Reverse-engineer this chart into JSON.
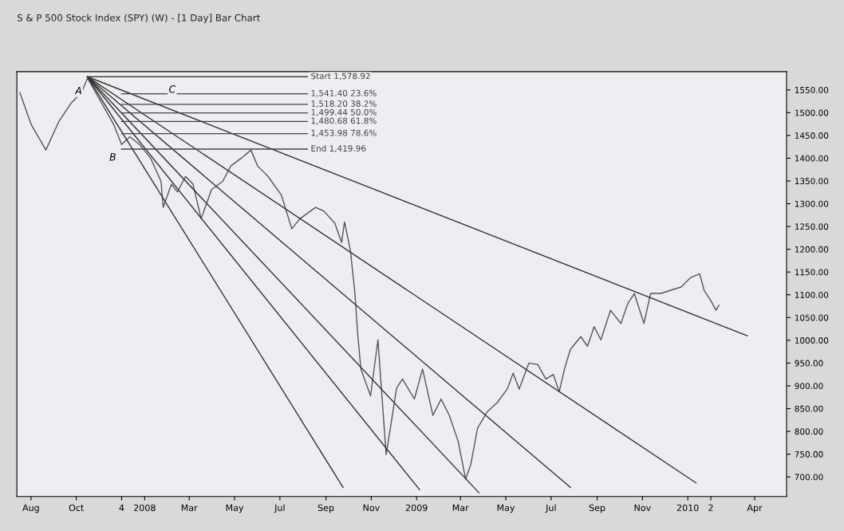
{
  "chart_data": {
    "type": "line",
    "title": "S & P 500 Stock Index (SPY) (W) - [1 Day] Bar Chart",
    "xlim": [
      "2007-07-13",
      "2010-05-14"
    ],
    "xticks": [
      {
        "value": "2007-08-01",
        "label": "Aug"
      },
      {
        "value": "2007-10-01",
        "label": "Oct"
      },
      {
        "value": "2007-12-01",
        "label": "4"
      },
      {
        "value": "2008-01-01",
        "label": "2008"
      },
      {
        "value": "2008-03-01",
        "label": "Mar"
      },
      {
        "value": "2008-05-01",
        "label": "May"
      },
      {
        "value": "2008-07-01",
        "label": "Jul"
      },
      {
        "value": "2008-09-01",
        "label": "Sep"
      },
      {
        "value": "2008-11-01",
        "label": "Nov"
      },
      {
        "value": "2009-01-01",
        "label": "2009"
      },
      {
        "value": "2009-03-01",
        "label": "Mar"
      },
      {
        "value": "2009-05-01",
        "label": "May"
      },
      {
        "value": "2009-07-01",
        "label": "Jul"
      },
      {
        "value": "2009-09-01",
        "label": "Sep"
      },
      {
        "value": "2009-11-01",
        "label": "Nov"
      },
      {
        "value": "2010-01-01",
        "label": "2010"
      },
      {
        "value": "2010-02-01",
        "label": "2"
      },
      {
        "value": "2010-04-01",
        "label": "Apr"
      }
    ],
    "ylim": [
      657,
      1590
    ],
    "yticks": [
      {
        "value": 700,
        "label": "700.00"
      },
      {
        "value": 750,
        "label": "750.00"
      },
      {
        "value": 800,
        "label": "800.00"
      },
      {
        "value": 850,
        "label": "850.00"
      },
      {
        "value": 900,
        "label": "900.00"
      },
      {
        "value": 950,
        "label": "950.00"
      },
      {
        "value": 1000,
        "label": "1000.00"
      },
      {
        "value": 1050,
        "label": "1050.00"
      },
      {
        "value": 1100,
        "label": "1100.00"
      },
      {
        "value": 1150,
        "label": "1150.00"
      },
      {
        "value": 1200,
        "label": "1200.00"
      },
      {
        "value": 1250,
        "label": "1250.00"
      },
      {
        "value": 1300,
        "label": "1300.00"
      },
      {
        "value": 1350,
        "label": "1350.00"
      },
      {
        "value": 1400,
        "label": "1400.00"
      },
      {
        "value": 1450,
        "label": "1450.00"
      },
      {
        "value": 1500,
        "label": "1500.00"
      },
      {
        "value": 1550,
        "label": "1550.00"
      }
    ],
    "grid": false,
    "legend": false,
    "series": [
      {
        "color": "#555555",
        "x": [
          "2007-07-17",
          "2007-08-01",
          "2007-08-21",
          "2007-09-08",
          "2007-09-24",
          "2007-10-08",
          "2007-10-16",
          "2007-11-02",
          "2007-11-20",
          "2007-12-01",
          "2007-12-12",
          "2007-12-25",
          "2008-01-09",
          "2008-01-23",
          "2008-01-26",
          "2008-02-06",
          "2008-02-14",
          "2008-02-25",
          "2008-03-06",
          "2008-03-17",
          "2008-03-31",
          "2008-04-15",
          "2008-04-26",
          "2008-05-10",
          "2008-05-23",
          "2008-06-01",
          "2008-06-15",
          "2008-07-03",
          "2008-07-17",
          "2008-07-28",
          "2008-08-18",
          "2008-08-29",
          "2008-09-13",
          "2008-09-22",
          "2008-09-26",
          "2008-10-04",
          "2008-10-10",
          "2008-10-14",
          "2008-10-18",
          "2008-10-31",
          "2008-11-10",
          "2008-11-14",
          "2008-11-21",
          "2008-11-28",
          "2008-12-05",
          "2008-12-13",
          "2008-12-29",
          "2009-01-09",
          "2009-01-23",
          "2009-02-03",
          "2009-02-14",
          "2009-02-26",
          "2009-03-04",
          "2009-03-08",
          "2009-03-15",
          "2009-03-24",
          "2009-04-06",
          "2009-04-20",
          "2009-05-03",
          "2009-05-11",
          "2009-05-19",
          "2009-06-01",
          "2009-06-13",
          "2009-06-24",
          "2009-07-04",
          "2009-07-12",
          "2009-07-19",
          "2009-07-27",
          "2009-08-10",
          "2009-08-19",
          "2009-08-28",
          "2009-09-06",
          "2009-09-19",
          "2009-10-03",
          "2009-10-12",
          "2009-10-21",
          "2009-11-03",
          "2009-11-12",
          "2009-11-26",
          "2009-12-09",
          "2009-12-23",
          "2010-01-05",
          "2010-01-17",
          "2010-01-23",
          "2010-02-01",
          "2010-02-08",
          "2010-02-12"
        ],
        "values": [
          1544,
          1475,
          1418,
          1482,
          1521,
          1544,
          1576,
          1527,
          1475,
          1430,
          1447,
          1430,
          1400,
          1349,
          1292,
          1343,
          1326,
          1360,
          1343,
          1267,
          1331,
          1349,
          1383,
          1400,
          1418,
          1383,
          1360,
          1319,
          1245,
          1267,
          1292,
          1284,
          1257,
          1215,
          1260,
          1196,
          1103,
          1008,
          937,
          878,
          1001,
          908,
          749,
          821,
          895,
          915,
          871,
          937,
          835,
          871,
          835,
          778,
          728,
          695,
          728,
          807,
          843,
          864,
          893,
          928,
          893,
          950,
          947,
          915,
          925,
          887,
          937,
          980,
          1008,
          987,
          1030,
          1001,
          1066,
          1037,
          1080,
          1103,
          1037,
          1103,
          1103,
          1110,
          1117,
          1138,
          1146,
          1110,
          1087,
          1066,
          1077
        ]
      },
      {
        "color": "#333333",
        "x": [
          "2007-10-16",
          "2010-03-22"
        ],
        "values": [
          1578.92,
          1010
        ]
      },
      {
        "color": "#333333",
        "x": [
          "2007-10-16",
          "2010-01-12"
        ],
        "values": [
          1578.92,
          687
        ]
      },
      {
        "color": "#333333",
        "x": [
          "2007-10-16",
          "2009-07-27"
        ],
        "values": [
          1578.92,
          677
        ]
      },
      {
        "color": "#333333",
        "x": [
          "2007-10-16",
          "2009-03-26"
        ],
        "values": [
          1578.92,
          665
        ]
      },
      {
        "color": "#333333",
        "x": [
          "2007-10-16",
          "2009-01-05"
        ],
        "values": [
          1578.92,
          672
        ]
      },
      {
        "color": "#333333",
        "x": [
          "2007-10-16",
          "2008-09-24"
        ],
        "values": [
          1578.92,
          677
        ]
      },
      {
        "name": "Start 1,578.92",
        "color": "#444444",
        "x": [
          "2007-10-16",
          "2008-08-07"
        ],
        "values": [
          1578.92,
          1578.92
        ]
      },
      {
        "name": "1,541.40 23.6%",
        "color": "#444444",
        "x": [
          "2007-12-01",
          "2008-08-07"
        ],
        "values": [
          1541.4,
          1541.4
        ]
      },
      {
        "name": "1,518.20 38.2%",
        "color": "#444444",
        "x": [
          "2007-12-01",
          "2008-08-07"
        ],
        "values": [
          1518.2,
          1518.2
        ]
      },
      {
        "name": "1,499.44 50.0%",
        "color": "#444444",
        "x": [
          "2007-12-01",
          "2008-08-07"
        ],
        "values": [
          1499.44,
          1499.44
        ]
      },
      {
        "name": "1,480.68 61.8%",
        "color": "#444444",
        "x": [
          "2007-12-01",
          "2008-08-07"
        ],
        "values": [
          1480.68,
          1480.68
        ]
      },
      {
        "name": "1,453.98 78.6%",
        "color": "#444444",
        "x": [
          "2007-12-01",
          "2008-08-07"
        ],
        "values": [
          1453.98,
          1453.98
        ]
      },
      {
        "name": "End 1,419.96",
        "color": "#444444",
        "x": [
          "2007-12-01",
          "2008-08-07"
        ],
        "values": [
          1419.96,
          1419.96
        ]
      }
    ],
    "annotations": [
      {
        "text": "A",
        "x": "2007-10-16",
        "y": 1576
      },
      {
        "text": "B",
        "x": "2007-12-01",
        "y": 1430
      },
      {
        "text": "C",
        "x": "2008-02-19",
        "y": 1578.92
      }
    ]
  }
}
